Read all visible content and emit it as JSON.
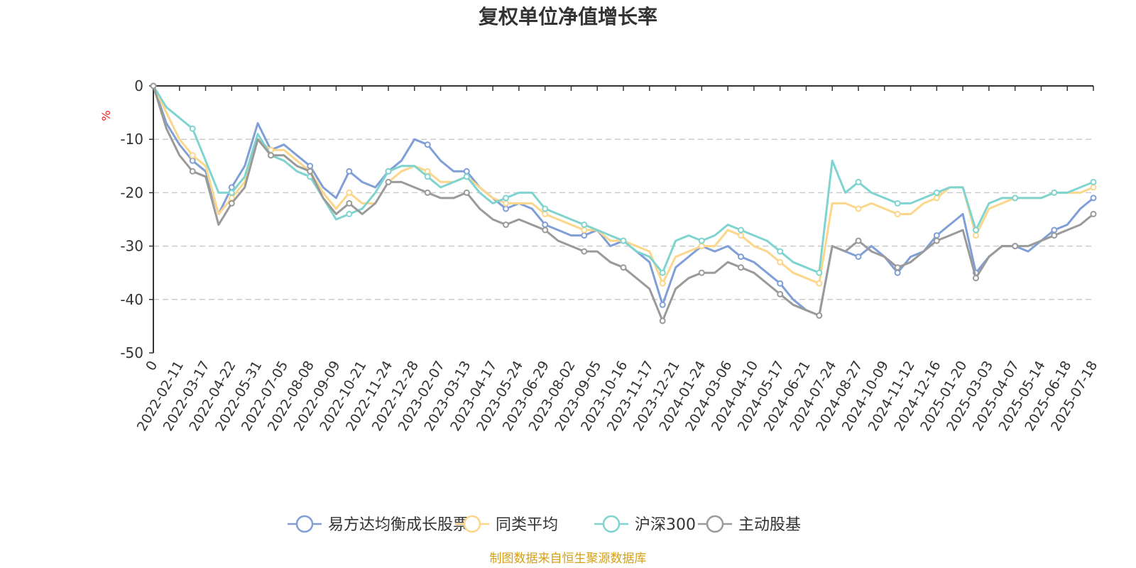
{
  "chart_data": {
    "type": "line",
    "title": "复权单位净值增长率",
    "ylabel": "%",
    "xlabel": "",
    "ylim": [
      -50,
      0
    ],
    "yticks": [
      0,
      -10,
      -20,
      -30,
      -40,
      -50
    ],
    "grid": true,
    "legend_position": "bottom",
    "source": "制图数据来自恒生聚源数据库",
    "x_tick_labels": [
      "0",
      "2022-02-11",
      "2022-03-17",
      "2022-04-22",
      "2022-05-31",
      "2022-07-05",
      "2022-08-08",
      "2022-09-09",
      "2022-10-21",
      "2022-11-24",
      "2022-12-28",
      "2023-02-07",
      "2023-03-13",
      "2023-04-17",
      "2023-05-24",
      "2023-06-29",
      "2023-08-02",
      "2023-09-05",
      "2023-10-16",
      "2023-11-17",
      "2023-12-21",
      "2024-01-24",
      "2024-03-06",
      "2024-04-10",
      "2024-05-17",
      "2024-06-21",
      "2024-07-24",
      "2024-08-27",
      "2024-10-09",
      "2024-11-12",
      "2024-12-16",
      "2025-01-20",
      "2025-03-03",
      "2025-04-07",
      "2025-05-14",
      "2025-06-18",
      "2025-07-18"
    ],
    "x": [
      0,
      0.5,
      1,
      1.5,
      2,
      2.5,
      3,
      3.5,
      4,
      4.5,
      5,
      5.5,
      6,
      6.5,
      7,
      7.5,
      8,
      8.5,
      9,
      9.5,
      10,
      10.5,
      11,
      11.5,
      12,
      12.5,
      13,
      13.5,
      14,
      14.5,
      15,
      15.5,
      16,
      16.5,
      17,
      17.5,
      18,
      18.5,
      19,
      19.5,
      20,
      20.5,
      21,
      21.5,
      22,
      22.5,
      23,
      23.5,
      24,
      24.5,
      25,
      25.5,
      26,
      26.5,
      27,
      27.5,
      28,
      28.5,
      29,
      29.5,
      30,
      30.5,
      31,
      31.5,
      32,
      32.5,
      33,
      33.5,
      34,
      34.5,
      35,
      35.5,
      36
    ],
    "series": [
      {
        "name": "易方达均衡成长股票",
        "color": "#7f9fd6",
        "values": [
          0,
          -7,
          -11,
          -14,
          -16,
          -24,
          -19,
          -15,
          -7,
          -12,
          -11,
          -13,
          -15,
          -19,
          -21,
          -16,
          -18,
          -19,
          -16,
          -14,
          -10,
          -11,
          -14,
          -16,
          -16,
          -19,
          -21,
          -23,
          -22,
          -23,
          -26,
          -27,
          -28,
          -28,
          -27,
          -30,
          -29,
          -31,
          -33,
          -41,
          -34,
          -32,
          -30,
          -31,
          -30,
          -32,
          -33,
          -35,
          -37,
          -40,
          -42,
          -43,
          -30,
          -31,
          -32,
          -30,
          -32,
          -35,
          -32,
          -31,
          -28,
          -26,
          -24,
          -35,
          -32,
          -30,
          -30,
          -31,
          -29,
          -27,
          -26,
          -23,
          -21
        ]
      },
      {
        "name": "同类平均",
        "color": "#fcd68a",
        "values": [
          0,
          -5,
          -10,
          -13,
          -15,
          -24,
          -21,
          -18,
          -10,
          -12,
          -12,
          -14,
          -16,
          -20,
          -23,
          -20,
          -22,
          -22,
          -18,
          -16,
          -15,
          -16,
          -18,
          -18,
          -17,
          -19,
          -21,
          -22,
          -22,
          -22,
          -24,
          -25,
          -26,
          -27,
          -27,
          -29,
          -29,
          -30,
          -31,
          -37,
          -32,
          -31,
          -30,
          -30,
          -27,
          -28,
          -30,
          -31,
          -33,
          -35,
          -36,
          -37,
          -22,
          -22,
          -23,
          -22,
          -23,
          -24,
          -24,
          -22,
          -21,
          -19,
          -19,
          -28,
          -23,
          -22,
          -21,
          -21,
          -21,
          -20,
          -20,
          -20,
          -19
        ]
      },
      {
        "name": "沪深300",
        "color": "#80d4d0",
        "values": [
          0,
          -4,
          -6,
          -8,
          -14,
          -20,
          -20,
          -17,
          -9,
          -13,
          -14,
          -16,
          -17,
          -21,
          -25,
          -24,
          -23,
          -20,
          -16,
          -15,
          -15,
          -17,
          -19,
          -18,
          -17,
          -20,
          -22,
          -21,
          -20,
          -20,
          -23,
          -24,
          -25,
          -26,
          -27,
          -28,
          -29,
          -31,
          -32,
          -35,
          -29,
          -28,
          -29,
          -28,
          -26,
          -27,
          -28,
          -29,
          -31,
          -33,
          -34,
          -35,
          -14,
          -20,
          -18,
          -20,
          -21,
          -22,
          -22,
          -21,
          -20,
          -19,
          -19,
          -27,
          -22,
          -21,
          -21,
          -21,
          -21,
          -20,
          -20,
          -19,
          -18
        ]
      },
      {
        "name": "主动股基",
        "color": "#9a9a9a",
        "values": [
          0,
          -8,
          -13,
          -16,
          -17,
          -26,
          -22,
          -19,
          -10,
          -13,
          -13,
          -15,
          -16,
          -21,
          -24,
          -22,
          -24,
          -22,
          -18,
          -18,
          -19,
          -20,
          -21,
          -21,
          -20,
          -23,
          -25,
          -26,
          -25,
          -26,
          -27,
          -29,
          -30,
          -31,
          -31,
          -33,
          -34,
          -36,
          -38,
          -44,
          -38,
          -36,
          -35,
          -35,
          -33,
          -34,
          -35,
          -37,
          -39,
          -41,
          -42,
          -43,
          -30,
          -31,
          -29,
          -31,
          -32,
          -34,
          -33,
          -31,
          -29,
          -28,
          -27,
          -36,
          -32,
          -30,
          -30,
          -30,
          -29,
          -28,
          -27,
          -26,
          -24
        ]
      }
    ]
  }
}
